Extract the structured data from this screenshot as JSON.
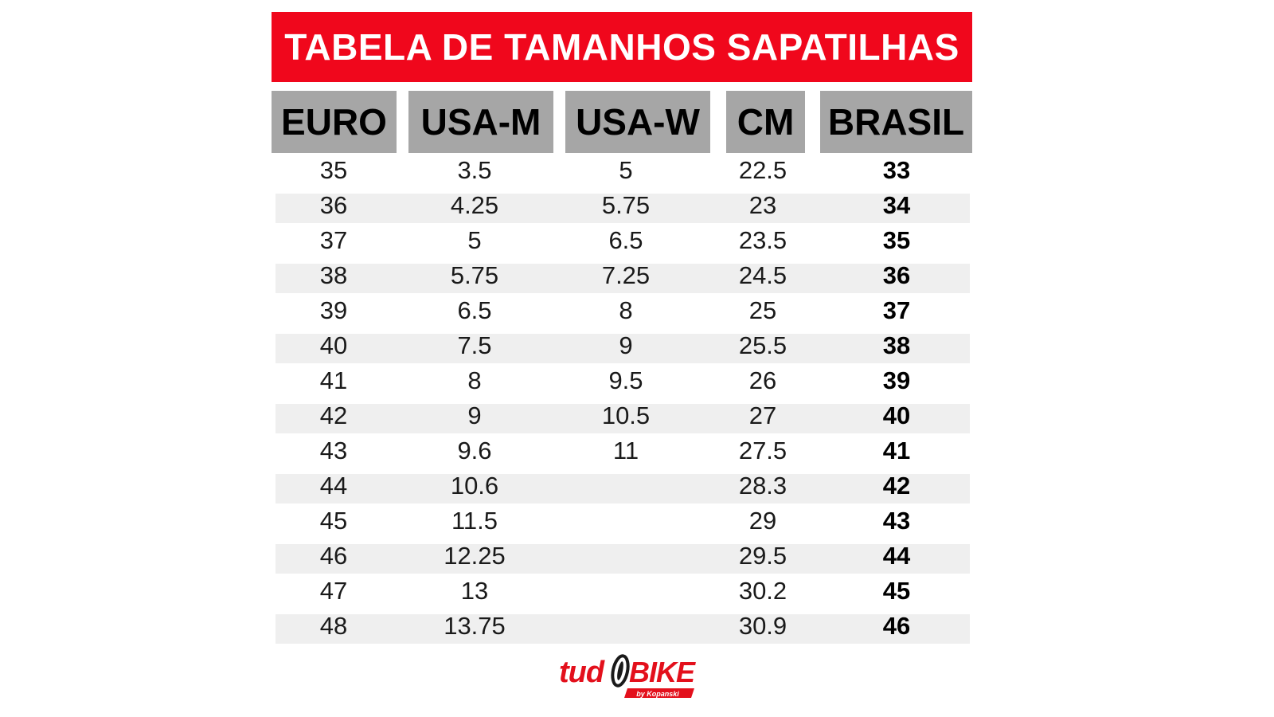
{
  "title": "TABELA DE TAMANHOS SAPATILHAS",
  "colors": {
    "banner": "#f0071c",
    "header": "#a6a6a6",
    "stripe": "#efefef"
  },
  "headers": [
    "EURO",
    "USA-M",
    "USA-W",
    "CM",
    "BRASIL"
  ],
  "rows": [
    [
      "35",
      "3.5",
      "5",
      "22.5",
      "33"
    ],
    [
      "36",
      "4.25",
      "5.75",
      "23",
      "34"
    ],
    [
      "37",
      "5",
      "6.5",
      "23.5",
      "35"
    ],
    [
      "38",
      "5.75",
      "7.25",
      "24.5",
      "36"
    ],
    [
      "39",
      "6.5",
      "8",
      "25",
      "37"
    ],
    [
      "40",
      "7.5",
      "9",
      "25.5",
      "38"
    ],
    [
      "41",
      "8",
      "9.5",
      "26",
      "39"
    ],
    [
      "42",
      "9",
      "10.5",
      "27",
      "40"
    ],
    [
      "43",
      "9.6",
      "11",
      "27.5",
      "41"
    ],
    [
      "44",
      "10.6",
      "",
      "28.3",
      "42"
    ],
    [
      "45",
      "11.5",
      "",
      "29",
      "43"
    ],
    [
      "46",
      "12.25",
      "",
      "29.5",
      "44"
    ],
    [
      "47",
      "13",
      "",
      "30.2",
      "45"
    ],
    [
      "48",
      "13.75",
      "",
      "30.9",
      "46"
    ]
  ],
  "logo": {
    "brand": "tudobike",
    "tagline": "by Kopanski"
  }
}
